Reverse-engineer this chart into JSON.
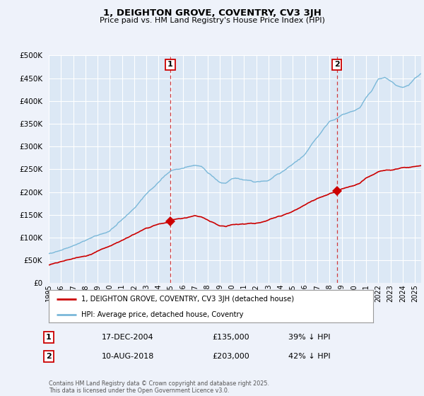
{
  "title": "1, DEIGHTON GROVE, COVENTRY, CV3 3JH",
  "subtitle": "Price paid vs. HM Land Registry's House Price Index (HPI)",
  "ylim": [
    0,
    500000
  ],
  "yticks": [
    0,
    50000,
    100000,
    150000,
    200000,
    250000,
    300000,
    350000,
    400000,
    450000,
    500000
  ],
  "ytick_labels": [
    "£0",
    "£50K",
    "£100K",
    "£150K",
    "£200K",
    "£250K",
    "£300K",
    "£350K",
    "£400K",
    "£450K",
    "£500K"
  ],
  "xlim_start": 1995.0,
  "xlim_end": 2025.5,
  "xticks": [
    1995,
    1996,
    1997,
    1998,
    1999,
    2000,
    2001,
    2002,
    2003,
    2004,
    2005,
    2006,
    2007,
    2008,
    2009,
    2010,
    2011,
    2012,
    2013,
    2014,
    2015,
    2016,
    2017,
    2018,
    2019,
    2020,
    2021,
    2022,
    2023,
    2024,
    2025
  ],
  "background_color": "#eef2fa",
  "plot_bg": "#dce8f5",
  "grid_color": "#ffffff",
  "line1_color": "#cc0000",
  "line2_color": "#7ab8d9",
  "sale1_x": 2004.96,
  "sale1_y": 135000,
  "sale1_label": "1",
  "sale2_x": 2018.61,
  "sale2_y": 203000,
  "sale2_label": "2",
  "vline_color": "#cc0000",
  "legend1_label": "1, DEIGHTON GROVE, COVENTRY, CV3 3JH (detached house)",
  "legend2_label": "HPI: Average price, detached house, Coventry",
  "annotation1_date": "17-DEC-2004",
  "annotation1_price": "£135,000",
  "annotation1_hpi": "39% ↓ HPI",
  "annotation2_date": "10-AUG-2018",
  "annotation2_price": "£203,000",
  "annotation2_hpi": "42% ↓ HPI",
  "footnote": "Contains HM Land Registry data © Crown copyright and database right 2025.\nThis data is licensed under the Open Government Licence v3.0."
}
